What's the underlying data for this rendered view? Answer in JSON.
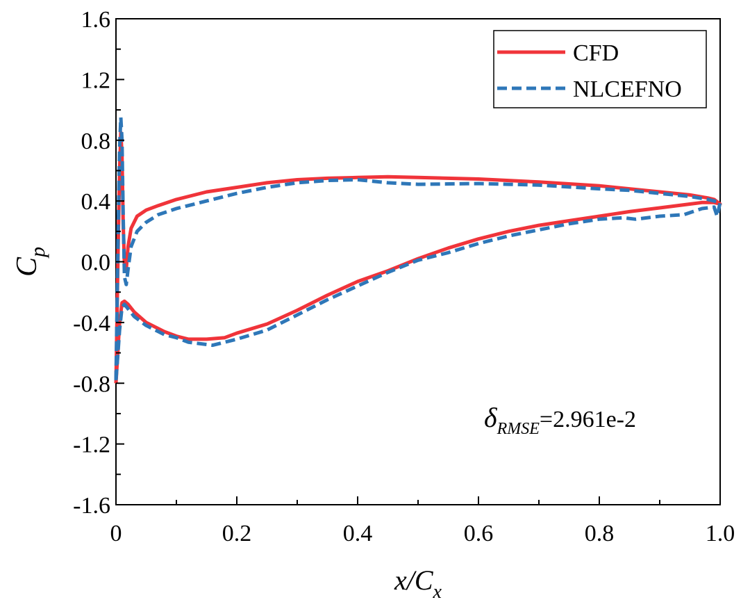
{
  "chart_data": {
    "type": "line",
    "xlabel": "x/C",
    "xlabel_sub": "x",
    "ylabel": "C",
    "ylabel_sub": "p",
    "xlim": [
      0,
      1.0
    ],
    "ylim": [
      -1.6,
      1.6
    ],
    "xticks": [
      "0",
      "0.2",
      "0.4",
      "0.6",
      "0.8",
      "1.0"
    ],
    "yticks": [
      "1.6",
      "1.2",
      "0.8",
      "0.4",
      "0.0",
      "-0.4",
      "-0.8",
      "-1.2",
      "-1.6"
    ],
    "legend_position": "top-right",
    "annotation": {
      "symbol": "δ",
      "subscript": "RMSE",
      "value": "=2.961e-2"
    },
    "series": [
      {
        "name": "CFD",
        "color": "#f0343a",
        "style": "solid",
        "points": [
          [
            0.0,
            -0.8
          ],
          [
            0.002,
            -0.3
          ],
          [
            0.004,
            0.2
          ],
          [
            0.006,
            0.6
          ],
          [
            0.008,
            0.85
          ],
          [
            0.01,
            0.7
          ],
          [
            0.012,
            0.25
          ],
          [
            0.014,
            -0.02
          ],
          [
            0.017,
            -0.05
          ],
          [
            0.02,
            0.1
          ],
          [
            0.025,
            0.22
          ],
          [
            0.035,
            0.3
          ],
          [
            0.05,
            0.34
          ],
          [
            0.07,
            0.37
          ],
          [
            0.1,
            0.41
          ],
          [
            0.15,
            0.46
          ],
          [
            0.2,
            0.49
          ],
          [
            0.25,
            0.52
          ],
          [
            0.3,
            0.54
          ],
          [
            0.35,
            0.55
          ],
          [
            0.4,
            0.555
          ],
          [
            0.45,
            0.56
          ],
          [
            0.5,
            0.555
          ],
          [
            0.6,
            0.545
          ],
          [
            0.7,
            0.525
          ],
          [
            0.8,
            0.5
          ],
          [
            0.9,
            0.46
          ],
          [
            0.95,
            0.44
          ],
          [
            0.98,
            0.42
          ],
          [
            0.99,
            0.41
          ],
          [
            1.0,
            0.38
          ],
          [
            0.99,
            0.39
          ],
          [
            0.97,
            0.39
          ],
          [
            0.95,
            0.38
          ],
          [
            0.9,
            0.355
          ],
          [
            0.85,
            0.33
          ],
          [
            0.8,
            0.3
          ],
          [
            0.75,
            0.27
          ],
          [
            0.7,
            0.24
          ],
          [
            0.65,
            0.2
          ],
          [
            0.6,
            0.15
          ],
          [
            0.55,
            0.09
          ],
          [
            0.5,
            0.02
          ],
          [
            0.45,
            -0.06
          ],
          [
            0.4,
            -0.13
          ],
          [
            0.35,
            -0.22
          ],
          [
            0.3,
            -0.32
          ],
          [
            0.25,
            -0.41
          ],
          [
            0.2,
            -0.47
          ],
          [
            0.18,
            -0.5
          ],
          [
            0.15,
            -0.51
          ],
          [
            0.12,
            -0.51
          ],
          [
            0.1,
            -0.49
          ],
          [
            0.08,
            -0.46
          ],
          [
            0.05,
            -0.4
          ],
          [
            0.03,
            -0.33
          ],
          [
            0.02,
            -0.28
          ],
          [
            0.014,
            -0.26
          ],
          [
            0.01,
            -0.27
          ],
          [
            0.006,
            -0.4
          ],
          [
            0.003,
            -0.6
          ],
          [
            0.0,
            -0.8
          ]
        ]
      },
      {
        "name": "NLCEFNO",
        "color": "#2e77b8",
        "style": "dashed",
        "points": [
          [
            0.0,
            -0.78
          ],
          [
            0.002,
            -0.25
          ],
          [
            0.004,
            0.3
          ],
          [
            0.006,
            0.75
          ],
          [
            0.008,
            0.95
          ],
          [
            0.01,
            0.8
          ],
          [
            0.012,
            0.3
          ],
          [
            0.014,
            -0.1
          ],
          [
            0.017,
            -0.15
          ],
          [
            0.02,
            -0.05
          ],
          [
            0.025,
            0.1
          ],
          [
            0.035,
            0.2
          ],
          [
            0.05,
            0.26
          ],
          [
            0.07,
            0.31
          ],
          [
            0.1,
            0.35
          ],
          [
            0.15,
            0.4
          ],
          [
            0.2,
            0.45
          ],
          [
            0.25,
            0.49
          ],
          [
            0.3,
            0.52
          ],
          [
            0.35,
            0.535
          ],
          [
            0.4,
            0.54
          ],
          [
            0.45,
            0.52
          ],
          [
            0.5,
            0.51
          ],
          [
            0.6,
            0.515
          ],
          [
            0.65,
            0.51
          ],
          [
            0.7,
            0.505
          ],
          [
            0.8,
            0.48
          ],
          [
            0.85,
            0.47
          ],
          [
            0.9,
            0.45
          ],
          [
            0.95,
            0.43
          ],
          [
            0.98,
            0.41
          ],
          [
            0.99,
            0.4
          ],
          [
            1.0,
            0.39
          ],
          [
            0.995,
            0.3
          ],
          [
            0.99,
            0.36
          ],
          [
            0.97,
            0.35
          ],
          [
            0.94,
            0.31
          ],
          [
            0.9,
            0.3
          ],
          [
            0.86,
            0.28
          ],
          [
            0.84,
            0.29
          ],
          [
            0.8,
            0.28
          ],
          [
            0.75,
            0.25
          ],
          [
            0.7,
            0.21
          ],
          [
            0.65,
            0.17
          ],
          [
            0.6,
            0.12
          ],
          [
            0.55,
            0.06
          ],
          [
            0.5,
            0.01
          ],
          [
            0.45,
            -0.07
          ],
          [
            0.4,
            -0.16
          ],
          [
            0.35,
            -0.25
          ],
          [
            0.3,
            -0.35
          ],
          [
            0.25,
            -0.45
          ],
          [
            0.2,
            -0.51
          ],
          [
            0.16,
            -0.55
          ],
          [
            0.12,
            -0.53
          ],
          [
            0.1,
            -0.5
          ],
          [
            0.08,
            -0.48
          ],
          [
            0.05,
            -0.42
          ],
          [
            0.03,
            -0.36
          ],
          [
            0.02,
            -0.31
          ],
          [
            0.014,
            -0.28
          ],
          [
            0.01,
            -0.3
          ],
          [
            0.006,
            -0.45
          ],
          [
            0.003,
            -0.62
          ],
          [
            0.0,
            -0.78
          ]
        ]
      }
    ]
  }
}
